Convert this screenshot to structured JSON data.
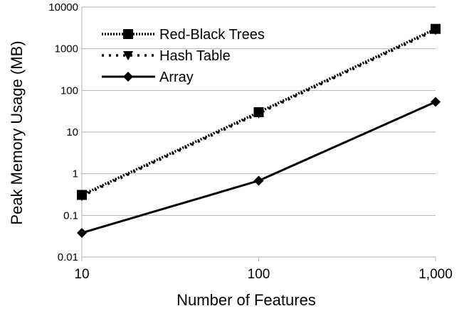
{
  "chart_data": {
    "type": "line",
    "title": "",
    "xlabel": "Number of Features",
    "ylabel": "Peak Memory Usage (MB)",
    "x": [
      10,
      100,
      1000
    ],
    "x_tick_labels": [
      "10",
      "100",
      "1,000"
    ],
    "y_tick_labels": [
      "0.01",
      "0.1",
      "1",
      "10",
      "100",
      "1000",
      "10000"
    ],
    "y_ticks": [
      0.01,
      0.1,
      1,
      10,
      100,
      1000,
      10000
    ],
    "x_scale": "log",
    "y_scale": "log",
    "xlim": [
      10,
      1000
    ],
    "ylim": [
      0.01,
      10000
    ],
    "grid": "horizontal",
    "legend_position": "top-left",
    "series": [
      {
        "name": "Red-Black Trees",
        "values": [
          0.31,
          30,
          3000
        ],
        "marker": "square",
        "line_style": "dotted"
      },
      {
        "name": "Hash Table",
        "values": [
          0.29,
          28,
          2800
        ],
        "marker": "triangle-down",
        "line_style": "dashed"
      },
      {
        "name": "Array",
        "values": [
          0.038,
          0.68,
          53
        ],
        "marker": "diamond",
        "line_style": "solid"
      }
    ],
    "colors": {
      "line": "#000000",
      "grid": "#b3b3b3"
    }
  }
}
